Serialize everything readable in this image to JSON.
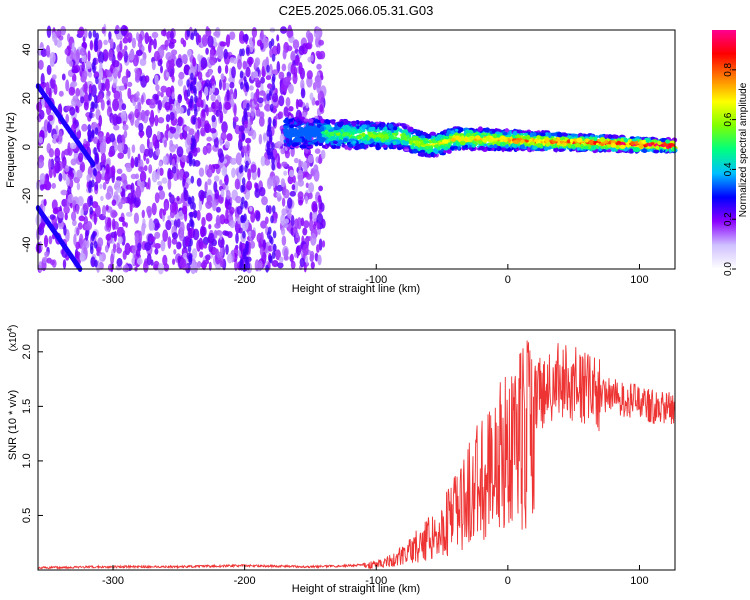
{
  "title": "C2E5.2025.066.05.31.G03",
  "chart_data": [
    {
      "type": "heatmap",
      "xlabel": "Height of straight line (km)",
      "ylabel": "Frequency (Hz)",
      "xlim": [
        -357,
        127
      ],
      "ylim": [
        -50,
        48
      ],
      "xticks": [
        -300,
        -200,
        -100,
        0,
        100
      ],
      "yticks": [
        -40,
        -20,
        0,
        20,
        40
      ],
      "colorbar": {
        "label": "Normalized spectral amplitude",
        "range": [
          0.0,
          0.96
        ],
        "ticks": [
          0.0,
          0.2,
          0.4,
          0.6,
          0.8
        ],
        "tick_labels": [
          "0.0",
          "0.2",
          "0.4",
          "0.6",
          "0.8"
        ],
        "colors": [
          "#ffffff",
          "#cfc0ff",
          "#8b00ff",
          "#0000ff",
          "#00bfff",
          "#00ff7f",
          "#7fff00",
          "#ffff00",
          "#ff7f00",
          "#ff0000",
          "#ff0090"
        ]
      },
      "features": [
        {
          "name": "noise",
          "x": [
            -357,
            -140
          ],
          "y": [
            -50,
            48
          ],
          "amplitude": 0.1
        },
        {
          "name": "diagonal",
          "x": [
            -357,
            -315
          ],
          "y_start": 25,
          "y_end": -7,
          "amplitude": 0.15
        },
        {
          "name": "diagonal",
          "x": [
            -357,
            -325
          ],
          "y_start": -25,
          "y_end": -50,
          "amplitude": 0.15
        },
        {
          "name": "signal",
          "x": [
            -170,
            127
          ],
          "y": [
            -5,
            10
          ],
          "amplitude": 0.9
        }
      ]
    },
    {
      "type": "line",
      "xlabel": "Height of straight line (km)",
      "ylabel": "SNR (10 * v/v)",
      "yexponent": "(x10",
      "yexponent_sup": "4",
      "yexponent_close": ")",
      "xlim": [
        -357,
        127
      ],
      "ylim": [
        0,
        2.2
      ],
      "xticks": [
        -300,
        -200,
        -100,
        0,
        100
      ],
      "yticks": [
        0.5,
        1.0,
        1.5,
        2.0
      ],
      "ytick_labels": [
        "0.5",
        "1.0",
        "1.5",
        "2.0"
      ],
      "color": "#ee3333",
      "series": [
        {
          "x": [
            -357,
            -300,
            -250,
            -200,
            -150,
            -120,
            -100,
            -90,
            -80,
            -70,
            -60,
            -50,
            -40,
            -30,
            -20,
            -10,
            0,
            10,
            20,
            30,
            40,
            50,
            60,
            70,
            80,
            90,
            100,
            110,
            120,
            127
          ],
          "y": [
            0.02,
            0.03,
            0.03,
            0.04,
            0.03,
            0.04,
            0.06,
            0.1,
            0.15,
            0.25,
            0.35,
            0.45,
            0.6,
            0.8,
            1.0,
            1.15,
            1.3,
            1.45,
            1.55,
            1.65,
            1.75,
            1.7,
            1.65,
            1.6,
            1.6,
            1.55,
            1.55,
            1.5,
            1.5,
            1.45
          ]
        }
      ]
    }
  ]
}
